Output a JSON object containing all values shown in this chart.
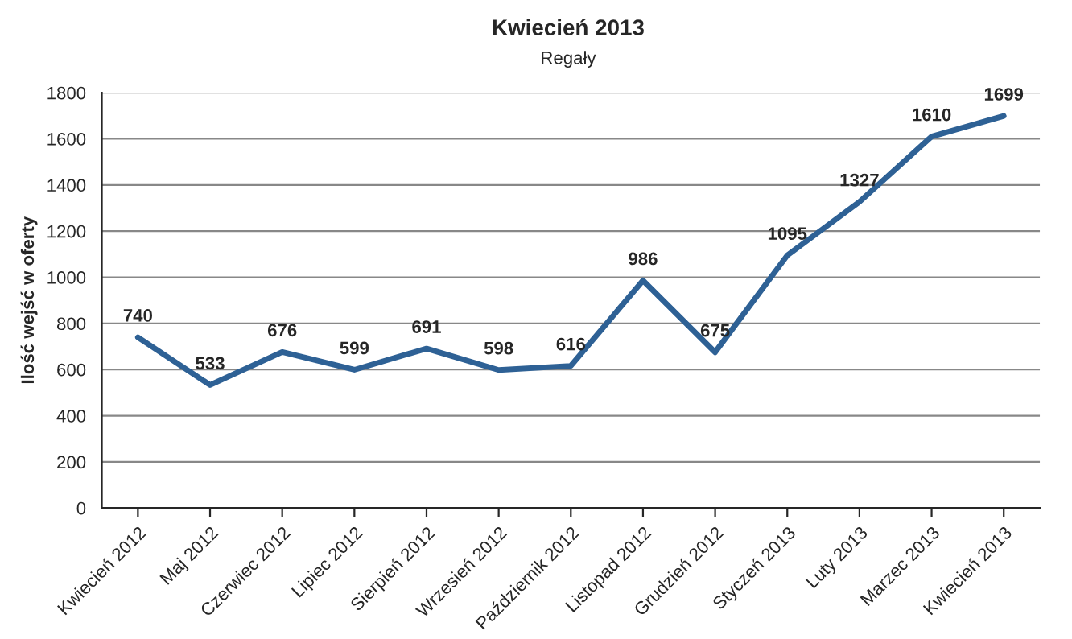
{
  "chart_data": {
    "type": "line",
    "title": "Kwiecień 2013",
    "subtitle": "Regały",
    "ylabel": "Ilość wejść w oferty",
    "categories": [
      "Kwiecień 2012",
      "Maj 2012",
      "Czerwiec 2012",
      "Lipiec 2012",
      "Sierpień 2012",
      "Wrzesień 2012",
      "Październik 2012",
      "Listopad 2012",
      "Grudzień 2012",
      "Styczeń 2013",
      "Luty 2013",
      "Marzec 2013",
      "Kwiecień 2013"
    ],
    "series": [
      {
        "color": "#2e6195",
        "values": [
          740,
          533,
          676,
          599,
          691,
          598,
          616,
          986,
          675,
          1095,
          1327,
          1610,
          1699
        ]
      }
    ],
    "ylim": [
      0,
      1800
    ],
    "yticks": [
      0,
      200,
      400,
      600,
      800,
      1000,
      1200,
      1400,
      1600,
      1800
    ],
    "grid": "y",
    "data_labels": true,
    "marker": "none",
    "line_style": "solid",
    "legend": false
  }
}
